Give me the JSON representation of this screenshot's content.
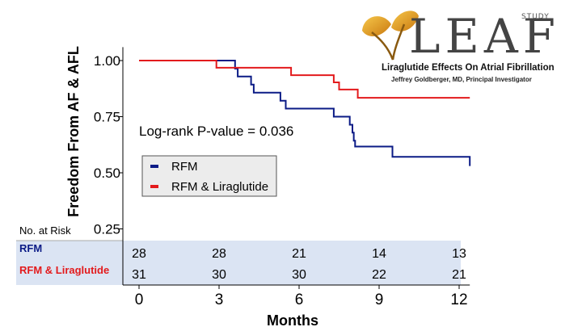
{
  "logo": {
    "word": "LEAF",
    "study": "STUDY",
    "subtitle": "Liraglutide Effects On Atrial Fibrillation",
    "investigator": "Jeffrey Goldberger, MD, Principal Investigator"
  },
  "chart_data": {
    "type": "line",
    "title": "",
    "xlabel": "Months",
    "ylabel": "Freedom From AF & AFL",
    "xlim": [
      0,
      12.4
    ],
    "ylim": [
      0.21,
      1.06
    ],
    "x_ticks": [
      0,
      3,
      6,
      9,
      12
    ],
    "x_tick_labels": [
      "0",
      "3",
      "6",
      "9",
      "12"
    ],
    "y_ticks": [
      0.25,
      0.5,
      0.75,
      1.0
    ],
    "y_tick_labels": [
      "0.25",
      "0.50",
      "0.75",
      "1.00"
    ],
    "grid": false,
    "legend_position": "center-left",
    "annotation": "Log-rank P-value = 0.036",
    "series": [
      {
        "name": "RFM",
        "color": "#0b1b86",
        "step_points": [
          [
            0,
            1.0
          ],
          [
            3.6,
            0.964
          ],
          [
            3.7,
            0.929
          ],
          [
            4.2,
            0.893
          ],
          [
            4.3,
            0.857
          ],
          [
            5.3,
            0.821
          ],
          [
            5.5,
            0.786
          ],
          [
            7.3,
            0.75
          ],
          [
            7.9,
            0.714
          ],
          [
            8.0,
            0.679
          ],
          [
            8.05,
            0.643
          ],
          [
            8.1,
            0.617
          ],
          [
            9.5,
            0.571
          ],
          [
            12.4,
            0.571
          ],
          [
            12.4,
            0.53
          ]
        ]
      },
      {
        "name": "RFM & Liraglutide",
        "color": "#e31a1c",
        "step_points": [
          [
            0,
            1.0
          ],
          [
            2.9,
            0.968
          ],
          [
            5.7,
            0.935
          ],
          [
            7.3,
            0.903
          ],
          [
            7.5,
            0.871
          ],
          [
            8.2,
            0.834
          ],
          [
            12.4,
            0.834
          ]
        ]
      }
    ],
    "risk_table": {
      "header": "No. at Risk",
      "rows": [
        {
          "label": "RFM",
          "color": "#0b1b86",
          "values": [
            "28",
            "28",
            "21",
            "14",
            "13"
          ]
        },
        {
          "label": "RFM & Liraglutide",
          "color": "#e31a1c",
          "values": [
            "31",
            "30",
            "30",
            "22",
            "21"
          ]
        }
      ]
    }
  }
}
